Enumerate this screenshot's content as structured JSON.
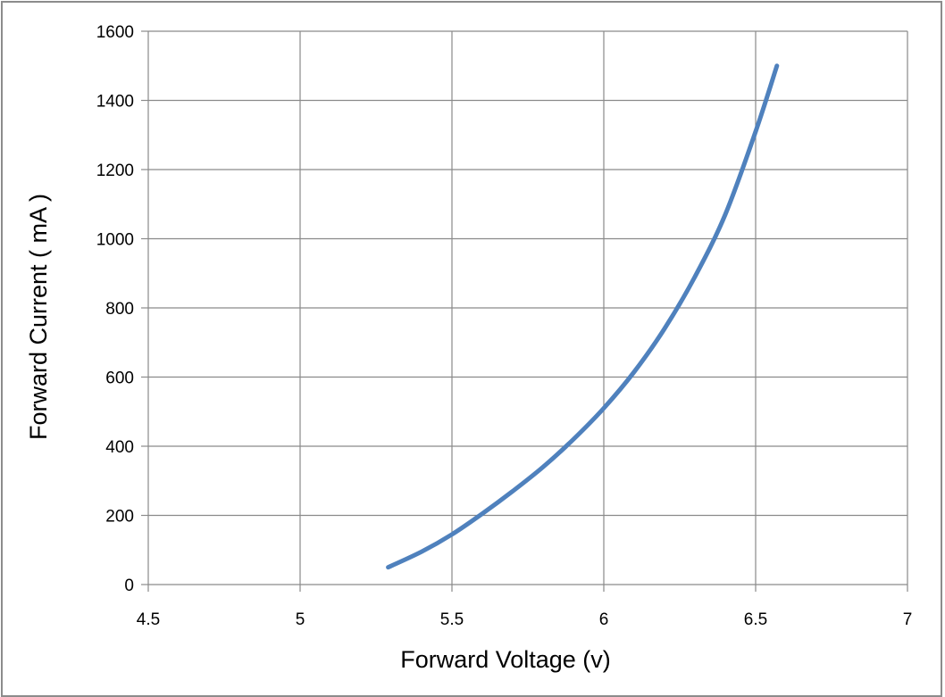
{
  "chart_data": {
    "type": "line",
    "title": "",
    "xlabel": "Forward Voltage (v)",
    "ylabel": "Forward Current ( mA )",
    "xlim": [
      4.5,
      7
    ],
    "ylim": [
      0,
      1600
    ],
    "x_ticks": [
      "4.5",
      "5",
      "5.5",
      "6",
      "6.5",
      "7"
    ],
    "y_ticks": [
      "0",
      "200",
      "400",
      "600",
      "800",
      "1000",
      "1200",
      "1400",
      "1600"
    ],
    "grid": true,
    "legend": "none",
    "series": [
      {
        "color": "#4f81bd",
        "x": [
          5.29,
          5.4,
          5.5,
          5.6,
          5.7,
          5.8,
          5.9,
          6.0,
          6.1,
          6.2,
          6.3,
          6.4,
          6.5,
          6.57
        ],
        "y": [
          50,
          95,
          145,
          205,
          270,
          340,
          420,
          510,
          615,
          740,
          890,
          1070,
          1310,
          1500
        ]
      }
    ]
  }
}
